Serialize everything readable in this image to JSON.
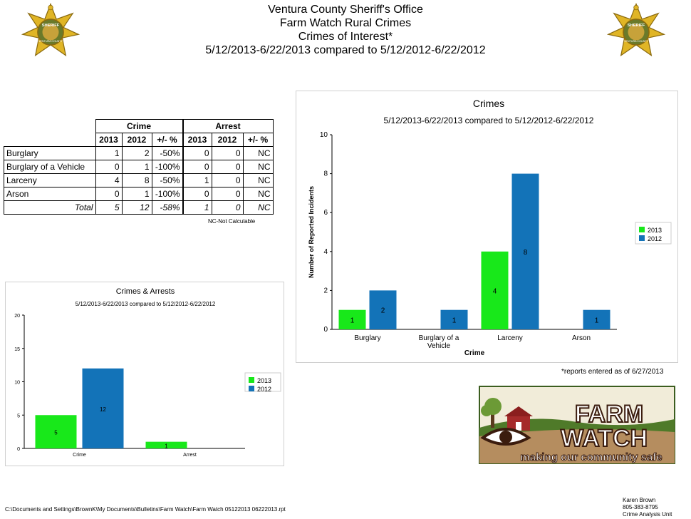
{
  "header": {
    "line1": "Ventura County Sheriff's Office",
    "line2": "Farm Watch Rural Crimes",
    "line3": "Crimes of Interest*",
    "line4": "5/12/2013-6/22/2013 compared to 5/12/2012-6/22/2012"
  },
  "colors": {
    "y2013": "#18e81a",
    "y2012": "#1373b8",
    "star": "#e0b526"
  },
  "table": {
    "group_headers": [
      "Crime",
      "Arrest"
    ],
    "sub_headers": [
      "2013",
      "2012",
      "+/- %",
      "2013",
      "2012",
      "+/- %"
    ],
    "rows": [
      {
        "label": "Burglary",
        "cells": [
          "1",
          "2",
          "-50%",
          "0",
          "0",
          "NC"
        ]
      },
      {
        "label": "Burglary of a Vehicle",
        "cells": [
          "0",
          "1",
          "-100%",
          "0",
          "0",
          "NC"
        ]
      },
      {
        "label": "Larceny",
        "cells": [
          "4",
          "8",
          "-50%",
          "1",
          "0",
          "NC"
        ]
      },
      {
        "label": "Arson",
        "cells": [
          "0",
          "1",
          "-100%",
          "0",
          "0",
          "NC"
        ]
      }
    ],
    "total": {
      "label": "Total",
      "cells": [
        "5",
        "12",
        "-58%",
        "1",
        "0",
        "NC"
      ]
    },
    "note": "NC-Not Calculable"
  },
  "chart_data": [
    {
      "type": "bar",
      "title": "Crimes",
      "subtitle": "5/12/2013-6/22/2013 compared to 5/12/2012-6/22/2012",
      "xlabel": "Crime",
      "ylabel": "Number of Reported Incidents",
      "ylim": [
        0,
        10
      ],
      "yticks": [
        0,
        2,
        4,
        6,
        8,
        10
      ],
      "categories": [
        "Burglary",
        "Burglary of a Vehicle",
        "Larceny",
        "Arson"
      ],
      "series": [
        {
          "name": "2013",
          "values": [
            1,
            0,
            4,
            0
          ]
        },
        {
          "name": "2012",
          "values": [
            2,
            1,
            8,
            1
          ]
        }
      ],
      "legend": "right",
      "grid": false
    },
    {
      "type": "bar",
      "title": "Crimes & Arrests",
      "subtitle": "5/12/2013-6/22/2013 compared to 5/12/2012-6/22/2012",
      "xlabel": "",
      "ylabel": "",
      "ylim": [
        0,
        20
      ],
      "yticks": [
        0,
        5,
        10,
        15,
        20
      ],
      "categories": [
        "Crime",
        "Arrest"
      ],
      "series": [
        {
          "name": "2013",
          "values": [
            5,
            1
          ]
        },
        {
          "name": "2012",
          "values": [
            12,
            0
          ]
        }
      ],
      "legend": "right",
      "grid": false
    }
  ],
  "footnote": "*reports entered as of 6/27/2013",
  "logo": {
    "word1": "FARM",
    "word2": "WATCH",
    "tagline": "making our community safe"
  },
  "badge_text": {
    "top": "SHERIFF",
    "bottom": "VENTURA COUNTY"
  },
  "footer": {
    "path": "C:\\Documents and Settings\\BrownK\\My Documents\\Bulletins\\Farm Watch\\Farm Watch 05122013 06222013.rpt",
    "name": "Karen Brown",
    "phone": "805-383-8795",
    "unit": "Crime Analysis Unit"
  }
}
